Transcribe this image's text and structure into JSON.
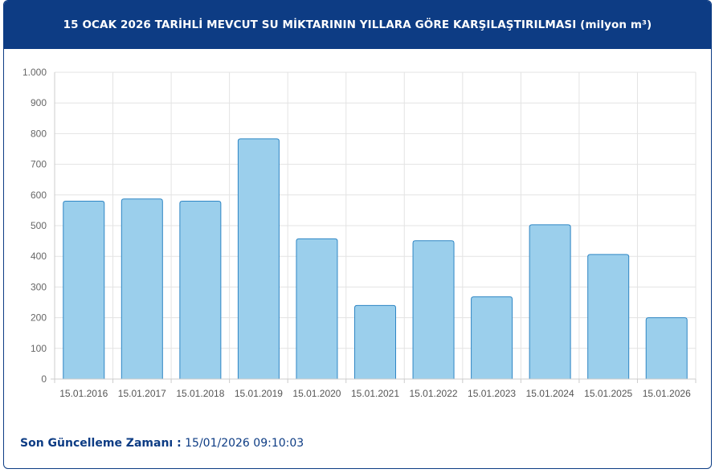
{
  "header": {
    "title": "15 OCAK 2026 TARİHLİ MEVCUT SU MİKTARININ YILLARA GÖRE KARŞILAŞTIRILMASI (milyon m³)"
  },
  "footer": {
    "label": "Son Güncelleme Zamanı :",
    "value": "15/01/2026 09:10:03"
  },
  "colors": {
    "header_bg": "#0d3c84",
    "bar_fill": "#9bcfec",
    "bar_stroke": "#2f86c4"
  },
  "chart_data": {
    "type": "bar",
    "title": "15 OCAK 2026 TARİHLİ MEVCUT SU MİKTARININ YILLARA GÖRE KARŞILAŞTIRILMASI (milyon m³)",
    "xlabel": "",
    "ylabel": "",
    "categories": [
      "15.01.2016",
      "15.01.2017",
      "15.01.2018",
      "15.01.2019",
      "15.01.2020",
      "15.01.2021",
      "15.01.2022",
      "15.01.2023",
      "15.01.2024",
      "15.01.2025",
      "15.01.2026"
    ],
    "values": [
      580,
      587,
      580,
      783,
      457,
      240,
      451,
      268,
      503,
      406,
      200
    ],
    "ylim": [
      0,
      1000
    ],
    "yticks": [
      0,
      100,
      200,
      300,
      400,
      500,
      600,
      700,
      800,
      900,
      1000
    ],
    "ytick_labels": [
      "0",
      "100",
      "200",
      "300",
      "400",
      "500",
      "600",
      "700",
      "800",
      "900",
      "1.000"
    ],
    "grid": true,
    "legend": "none"
  }
}
